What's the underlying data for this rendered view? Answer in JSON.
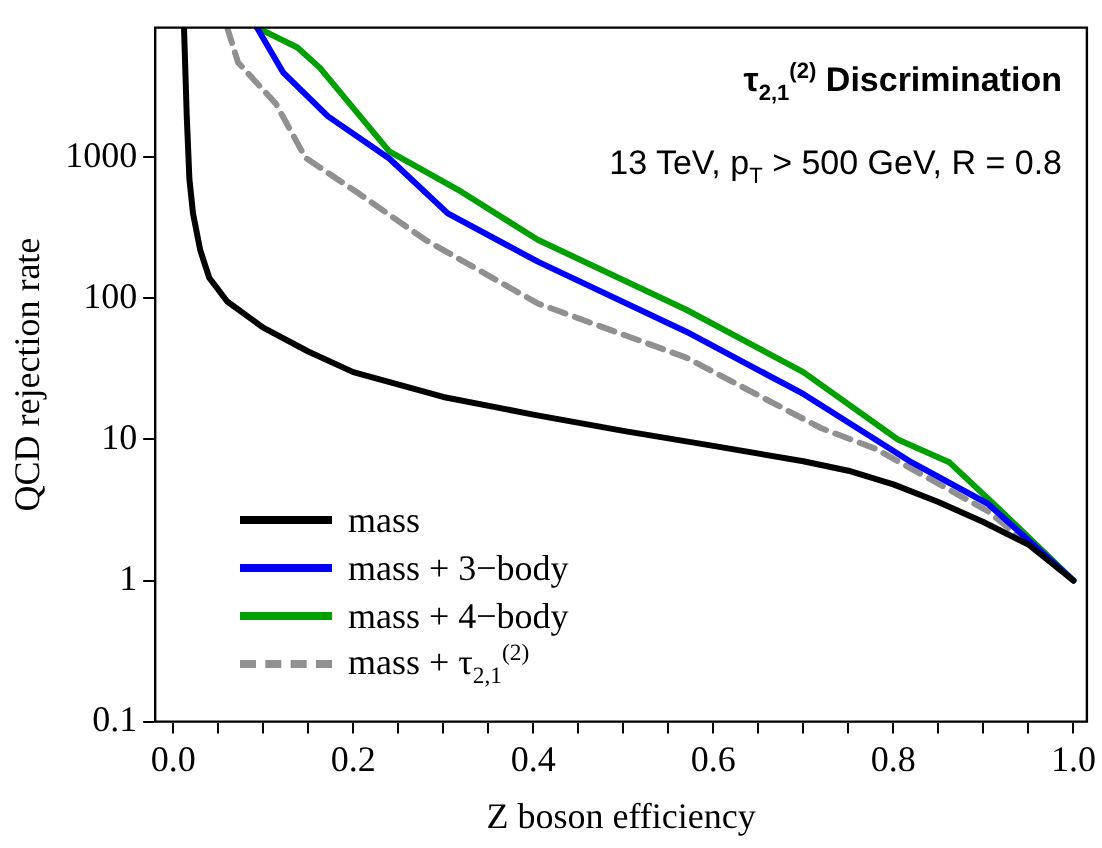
{
  "chart_data": {
    "type": "line",
    "title": "τ$_{2,1}$$^{(2)}$ Discrimination",
    "subtitle": "13 TeV, p$_{T}$ > 500 GeV, R = 0.8",
    "xlabel": "Z boson efficiency",
    "ylabel": "QCD rejection rate",
    "log": "y",
    "grid": false,
    "legend": "bottom left",
    "marker": "none",
    "xlim": [
      -0.02,
      1.015
    ],
    "ylim": [
      0.1,
      8300
    ],
    "xticks": [
      {
        "value": 0,
        "label": "0.0"
      },
      {
        "value": 0.05,
        "label": null
      },
      {
        "value": 0.1,
        "label": null
      },
      {
        "value": 0.15,
        "label": null
      },
      {
        "value": 0.2,
        "label": "0.2"
      },
      {
        "value": 0.25,
        "label": null
      },
      {
        "value": 0.3,
        "label": null
      },
      {
        "value": 0.35,
        "label": null
      },
      {
        "value": 0.4,
        "label": "0.4"
      },
      {
        "value": 0.45,
        "label": null
      },
      {
        "value": 0.5,
        "label": null
      },
      {
        "value": 0.55,
        "label": null
      },
      {
        "value": 0.6,
        "label": "0.6"
      },
      {
        "value": 0.65,
        "label": null
      },
      {
        "value": 0.7,
        "label": null
      },
      {
        "value": 0.75,
        "label": null
      },
      {
        "value": 0.8,
        "label": "0.8"
      },
      {
        "value": 0.85,
        "label": null
      },
      {
        "value": 0.9,
        "label": null
      },
      {
        "value": 0.95,
        "label": null
      },
      {
        "value": 1,
        "label": "1.0"
      }
    ],
    "yticks": [
      0.1,
      1,
      10,
      100,
      1000
    ],
    "series": [
      {
        "name": "mass",
        "color": "#000000",
        "line_style": "solid",
        "x": [
          0.012,
          0.015,
          0.018,
          0.022,
          0.03,
          0.04,
          0.06,
          0.1,
          0.15,
          0.2,
          0.3,
          0.4,
          0.5,
          0.6,
          0.7,
          0.75,
          0.8,
          0.85,
          0.9,
          0.95,
          1.0
        ],
        "values": [
          8300,
          2000,
          700,
          400,
          220,
          140,
          95,
          62,
          42,
          30,
          20,
          15,
          11.5,
          9,
          7,
          6,
          4.8,
          3.6,
          2.6,
          1.8,
          1
        ]
      },
      {
        "name": "mass + 3−body",
        "color": "#0000ff",
        "line_style": "solid",
        "x": [
          0.093,
          0.122,
          0.172,
          0.24,
          0.305,
          0.405,
          0.57,
          0.7,
          0.82,
          0.905,
          1.0
        ],
        "values": [
          8300,
          4000,
          1950,
          980,
          400,
          182,
          58,
          21,
          6.9,
          3.5,
          1
        ]
      },
      {
        "name": "mass + 4−body",
        "color": "#00a000",
        "line_style": "solid",
        "x": [
          0.093,
          0.138,
          0.163,
          0.24,
          0.32,
          0.405,
          0.57,
          0.7,
          0.805,
          0.862,
          0.92,
          1.0
        ],
        "values": [
          8300,
          6000,
          4300,
          1100,
          570,
          260,
          83,
          30,
          10,
          6.9,
          3.1,
          1
        ]
      },
      {
        "name": "mass + τ$_{2,1}$$^{(2)}$",
        "color": "#909090",
        "line_style": "dashed",
        "x": [
          0.06,
          0.072,
          0.114,
          0.147,
          0.205,
          0.28,
          0.405,
          0.57,
          0.72,
          0.78,
          0.905,
          1.0
        ],
        "values": [
          8300,
          4700,
          2400,
          990,
          560,
          260,
          92,
          38,
          12,
          8.6,
          3.1,
          1
        ]
      }
    ]
  }
}
